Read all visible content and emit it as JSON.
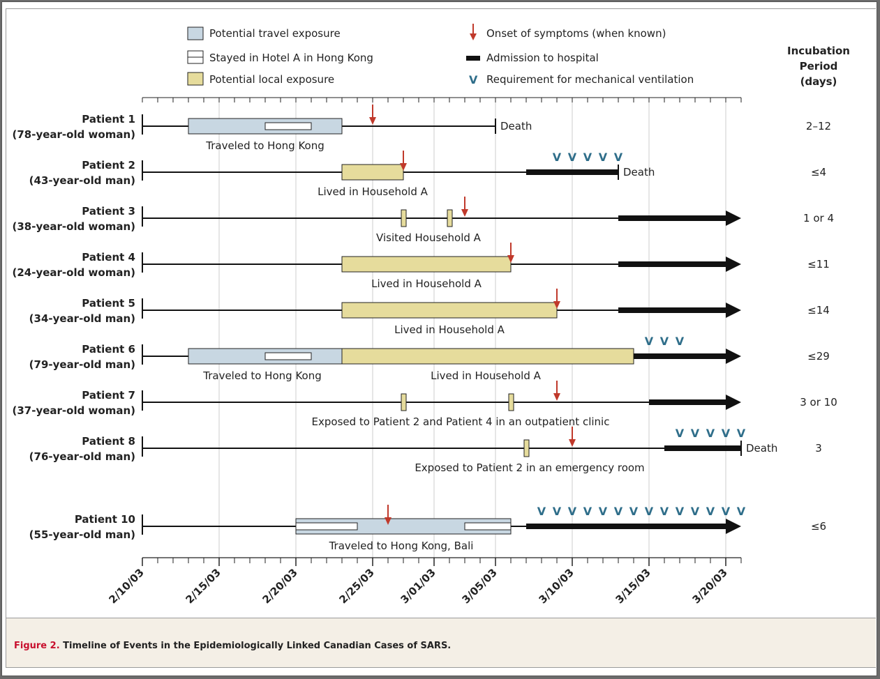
{
  "caption": {
    "lead": "Figure 2.",
    "text": "Timeline of Events in the Epidemiologically Linked Canadian Cases of SARS."
  },
  "legend": {
    "travel": "Potential travel exposure",
    "hotel": "Stayed in Hotel A in Hong Kong",
    "local": "Potential local exposure",
    "onset": "Onset of symptoms (when known)",
    "admission": "Admission to hospital",
    "ventilation": "Requirement for mechanical ventilation"
  },
  "incubation_header": [
    "Incubation",
    "Period",
    "(days)"
  ],
  "colors": {
    "travel": "#c8d7e2",
    "local": "#e6dc9c",
    "onset": "#c0392b",
    "vent": "#2f6e8a",
    "grid": "#cccccc",
    "text": "#222222"
  },
  "chart_data": {
    "type": "timeline",
    "x_axis": {
      "ticks": [
        "2/10/03",
        "2/15/03",
        "2/20/03",
        "2/25/03",
        "3/01/03",
        "3/05/03",
        "3/10/03",
        "3/15/03",
        "3/20/03"
      ],
      "range": [
        "2003-02-10",
        "2003-03-21"
      ],
      "minor_ticks": "daily"
    },
    "patients": [
      {
        "label": "Patient 1",
        "desc": "(78-year-old woman)",
        "incubation": "2–12",
        "travel": [
          [
            "2003-02-13",
            "2003-02-23"
          ]
        ],
        "hotel": [
          [
            "2003-02-18",
            "2003-02-21"
          ]
        ],
        "local": [],
        "exposure_label": "Traveled to Hong Kong",
        "onset": "2003-02-25",
        "line_end": "2003-03-05",
        "admission": null,
        "ventilation": [],
        "outcome": "Death",
        "ongoing": false
      },
      {
        "label": "Patient 2",
        "desc": "(43-year-old man)",
        "incubation": "≤4",
        "travel": [],
        "hotel": [],
        "local": [
          [
            "2003-02-23",
            "2003-02-27"
          ]
        ],
        "exposure_label": "Lived in Household A",
        "onset": "2003-02-27",
        "line_end": "2003-03-13",
        "admission": "2003-03-07",
        "ventilation": [
          "2003-03-09",
          "2003-03-10",
          "2003-03-11",
          "2003-03-12",
          "2003-03-13"
        ],
        "outcome": "Death",
        "ongoing": false
      },
      {
        "label": "Patient 3",
        "desc": "(38-year-old woman)",
        "incubation": "1 or 4",
        "travel": [],
        "hotel": [],
        "local": [
          [
            "2003-02-27",
            "2003-02-27"
          ],
          [
            "2003-03-02",
            "2003-03-02"
          ]
        ],
        "exposure_label": "Visited Household A",
        "onset": "2003-03-03",
        "line_end": "2003-03-21",
        "admission": "2003-03-13",
        "ventilation": [],
        "outcome": "",
        "ongoing": true
      },
      {
        "label": "Patient 4",
        "desc": "(24-year-old woman)",
        "incubation": "≤11",
        "travel": [],
        "hotel": [],
        "local": [
          [
            "2003-02-23",
            "2003-03-06"
          ]
        ],
        "exposure_label": "Lived in Household A",
        "onset": "2003-03-06",
        "line_end": "2003-03-21",
        "admission": "2003-03-13",
        "ventilation": [],
        "outcome": "",
        "ongoing": true
      },
      {
        "label": "Patient 5",
        "desc": "(34-year-old man)",
        "incubation": "≤14",
        "travel": [],
        "hotel": [],
        "local": [
          [
            "2003-02-23",
            "2003-03-09"
          ]
        ],
        "exposure_label": "Lived in Household A",
        "onset": "2003-03-09",
        "line_end": "2003-03-21",
        "admission": "2003-03-13",
        "ventilation": [],
        "outcome": "",
        "ongoing": true
      },
      {
        "label": "Patient 6",
        "desc": "(79-year-old man)",
        "incubation": "≤29",
        "travel": [
          [
            "2003-02-13",
            "2003-02-23"
          ]
        ],
        "hotel": [
          [
            "2003-02-18",
            "2003-02-21"
          ]
        ],
        "local": [
          [
            "2003-02-23",
            "2003-03-14"
          ]
        ],
        "exposure_label": "Traveled to Hong Kong",
        "exposure_label2": "Lived in Household A",
        "onset": null,
        "line_end": "2003-03-21",
        "admission": "2003-03-14",
        "ventilation": [
          "2003-03-15",
          "2003-03-16",
          "2003-03-17"
        ],
        "outcome": "",
        "ongoing": true
      },
      {
        "label": "Patient 7",
        "desc": "(37-year-old woman)",
        "incubation": "3 or 10",
        "travel": [],
        "hotel": [],
        "local": [
          [
            "2003-02-27",
            "2003-02-27"
          ],
          [
            "2003-03-06",
            "2003-03-06"
          ]
        ],
        "exposure_label": "Exposed to Patient 2 and Patient 4 in an outpatient clinic",
        "onset": "2003-03-09",
        "line_end": "2003-03-21",
        "admission": "2003-03-15",
        "ventilation": [],
        "outcome": "",
        "ongoing": true
      },
      {
        "label": "Patient 8",
        "desc": "(76-year-old man)",
        "incubation": "3",
        "travel": [],
        "hotel": [],
        "local": [
          [
            "2003-03-07",
            "2003-03-07"
          ]
        ],
        "exposure_label": "Exposed to Patient 2 in an emergency room",
        "onset": "2003-03-10",
        "line_end": "2003-03-21",
        "admission": "2003-03-16",
        "ventilation": [
          "2003-03-17",
          "2003-03-18",
          "2003-03-19",
          "2003-03-20",
          "2003-03-21"
        ],
        "outcome": "Death",
        "ongoing": false
      },
      {
        "label": "Patient 10",
        "desc": "(55-year-old man)",
        "incubation": "≤6",
        "travel": [
          [
            "2003-02-20",
            "2003-03-06"
          ]
        ],
        "hotel": [
          [
            "2003-02-20",
            "2003-02-24"
          ],
          [
            "2003-03-03",
            "2003-03-06"
          ]
        ],
        "local": [],
        "exposure_label": "Traveled to Hong Kong, Bali",
        "onset": "2003-02-26",
        "line_end": "2003-03-21",
        "admission": "2003-03-07",
        "ventilation": [
          "2003-03-08",
          "2003-03-09",
          "2003-03-10",
          "2003-03-11",
          "2003-03-12",
          "2003-03-13",
          "2003-03-14",
          "2003-03-15",
          "2003-03-16",
          "2003-03-17",
          "2003-03-18",
          "2003-03-19",
          "2003-03-20",
          "2003-03-21"
        ],
        "outcome": "",
        "ongoing": true
      }
    ]
  }
}
